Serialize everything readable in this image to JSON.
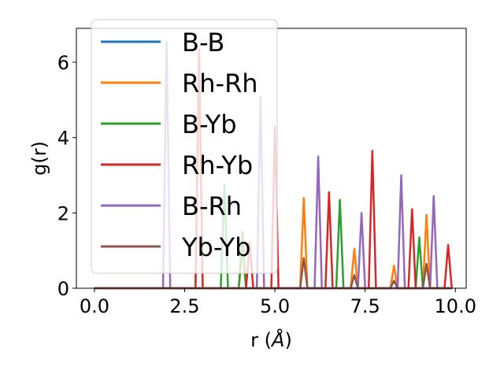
{
  "chart_data": {
    "type": "line",
    "xlabel_prefix": "r (",
    "xlabel_unit": "Å",
    "xlabel_suffix": ")",
    "ylabel": "g(r)",
    "xlim": [
      -0.5,
      10.3
    ],
    "ylim": [
      0,
      6.9
    ],
    "xticks": [
      0.0,
      2.5,
      5.0,
      7.5,
      10.0
    ],
    "xtick_labels": [
      "0.0",
      "2.5",
      "5.0",
      "7.5",
      "10.0"
    ],
    "yticks": [
      0,
      2,
      4,
      6
    ],
    "ytick_labels": [
      "0",
      "2",
      "4",
      "6"
    ],
    "x_range": [
      0.0,
      9.9
    ],
    "peak_half_width": 0.1,
    "legend_position": "upper-left",
    "grid": false,
    "series": [
      {
        "name": "B-B",
        "color": "#1f77b4",
        "peaks": []
      },
      {
        "name": "Rh-Rh",
        "color": "#ff7f0e",
        "peaks": [
          [
            2.9,
            6.2
          ],
          [
            4.1,
            1.0
          ],
          [
            5.8,
            2.4
          ],
          [
            7.2,
            1.05
          ],
          [
            8.3,
            0.6
          ],
          [
            9.2,
            1.95
          ]
        ]
      },
      {
        "name": "B-Yb",
        "color": "#2ca02c",
        "peaks": [
          [
            3.6,
            2.75
          ],
          [
            4.1,
            1.5
          ],
          [
            6.8,
            2.35
          ],
          [
            9.0,
            1.35
          ]
        ]
      },
      {
        "name": "Rh-Yb",
        "color": "#d62728",
        "peaks": [
          [
            2.9,
            6.35
          ],
          [
            4.3,
            1.2
          ],
          [
            5.0,
            4.3
          ],
          [
            6.5,
            2.55
          ],
          [
            7.7,
            3.65
          ],
          [
            8.8,
            2.1
          ],
          [
            9.8,
            1.15
          ]
        ]
      },
      {
        "name": "B-Rh",
        "color": "#9467bd",
        "peaks": [
          [
            2.0,
            6.55
          ],
          [
            4.6,
            5.1
          ],
          [
            6.2,
            3.5
          ],
          [
            7.4,
            2.0
          ],
          [
            8.5,
            3.0
          ],
          [
            9.4,
            2.45
          ]
        ]
      },
      {
        "name": "Yb-Yb",
        "color": "#8c564b",
        "peaks": [
          [
            5.8,
            0.8
          ],
          [
            7.2,
            0.35
          ],
          [
            8.3,
            0.2
          ],
          [
            9.2,
            0.65
          ]
        ]
      }
    ]
  }
}
